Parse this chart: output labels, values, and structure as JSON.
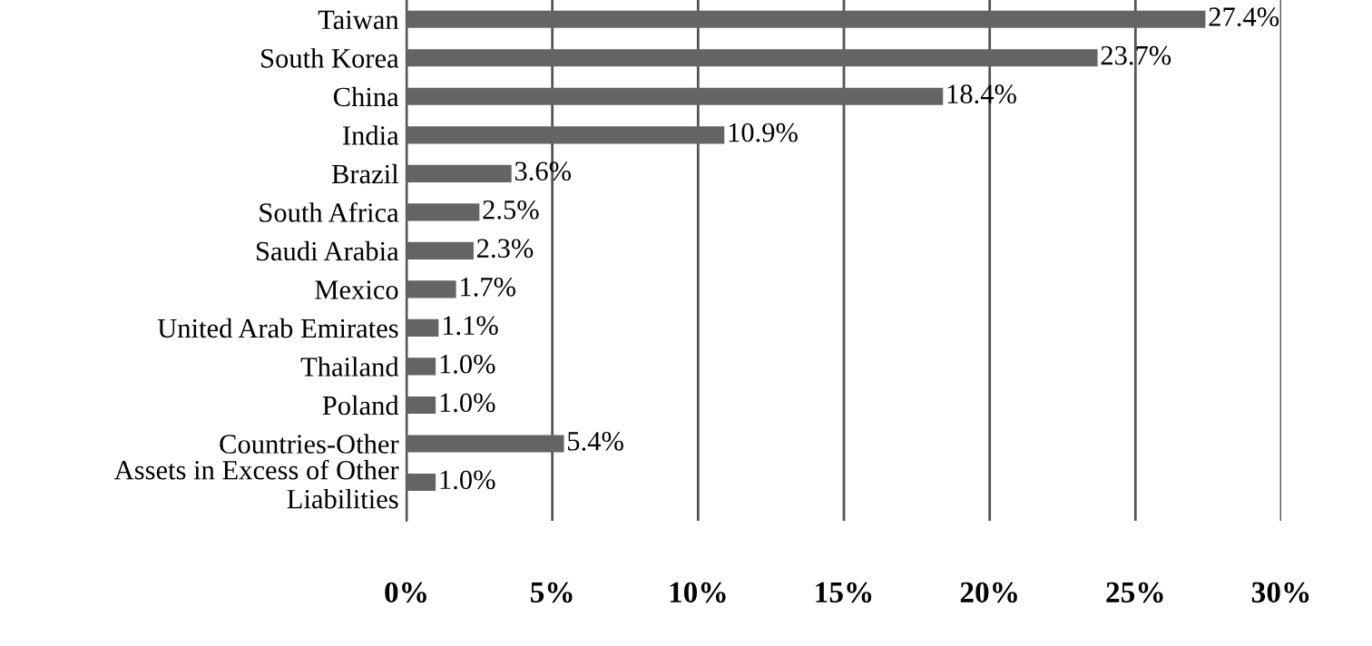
{
  "chart_data": {
    "type": "bar",
    "orientation": "horizontal",
    "categories": [
      "Taiwan",
      "South Korea",
      "China",
      "India",
      "Brazil",
      "South Africa",
      "Saudi Arabia",
      "Mexico",
      "United Arab Emirates",
      "Thailand",
      "Poland",
      "Countries-Other",
      "Assets in Excess of Other\nLiabilities"
    ],
    "values": [
      27.4,
      23.7,
      18.4,
      10.9,
      3.6,
      2.5,
      2.3,
      1.7,
      1.1,
      1.0,
      1.0,
      5.4,
      1.0
    ],
    "value_labels": [
      "27.4%",
      "23.7%",
      "18.4%",
      "10.9%",
      "3.6%",
      "2.5%",
      "2.3%",
      "1.7%",
      "1.1%",
      "1.0%",
      "1.0%",
      "5.4%",
      "1.0%"
    ],
    "color": "#646464",
    "xlim": [
      0,
      30
    ],
    "xticks": [
      {
        "value": 0,
        "label": "0%"
      },
      {
        "value": 5,
        "label": "5%"
      },
      {
        "value": 10,
        "label": "10%"
      },
      {
        "value": 15,
        "label": "15%"
      },
      {
        "value": 20,
        "label": "20%"
      },
      {
        "value": 25,
        "label": "25%"
      },
      {
        "value": 30,
        "label": "30%"
      }
    ],
    "grid": "x",
    "legend": false
  }
}
